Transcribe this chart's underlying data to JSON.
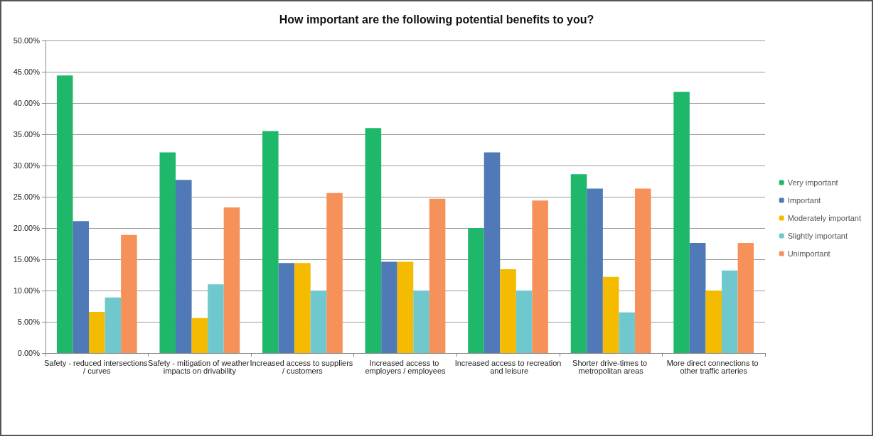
{
  "chart_data": {
    "type": "bar",
    "title": "How important are the following potential benefits to you?",
    "categories": [
      "Safety - reduced intersections / curves",
      "Safety - mitigation of weather impacts on drivability",
      "Increased access to suppliers / customers",
      "Increased access to employers / employees",
      "Increased access to recreation and leisure",
      "Shorter drive-times to metropolitan areas",
      "More direct connections to other traffic arteries"
    ],
    "series": [
      {
        "name": "Very important",
        "color": "#1fb86a",
        "values": [
          44.4,
          32.1,
          35.5,
          36.0,
          20.0,
          28.6,
          41.8
        ]
      },
      {
        "name": "Important",
        "color": "#4f79b7",
        "values": [
          21.1,
          27.7,
          14.4,
          14.6,
          32.1,
          26.3,
          17.6
        ]
      },
      {
        "name": "Moderately important",
        "color": "#f5bb00",
        "values": [
          6.6,
          5.6,
          14.4,
          14.6,
          13.4,
          12.2,
          10.0
        ]
      },
      {
        "name": "Slightly important",
        "color": "#70c8cf",
        "values": [
          8.9,
          11.0,
          10.0,
          10.0,
          10.0,
          6.5,
          13.2
        ]
      },
      {
        "name": "Unimportant",
        "color": "#f7915a",
        "values": [
          18.9,
          23.3,
          25.6,
          24.7,
          24.4,
          26.3,
          17.6
        ]
      }
    ],
    "ylim": [
      0,
      50
    ],
    "yticks": [
      {
        "value": 0,
        "label": "0.00%"
      },
      {
        "value": 5,
        "label": "5.00%"
      },
      {
        "value": 10,
        "label": "10.00%"
      },
      {
        "value": 15,
        "label": "15.00%"
      },
      {
        "value": 20,
        "label": "20.00%"
      },
      {
        "value": 25,
        "label": "25.00%"
      },
      {
        "value": 30,
        "label": "30.00%"
      },
      {
        "value": 35,
        "label": "35.00%"
      },
      {
        "value": 40,
        "label": "40.00%"
      },
      {
        "value": 45,
        "label": "45.00%"
      },
      {
        "value": 50,
        "label": "50.00%"
      }
    ],
    "grid": "y",
    "legend": "right"
  }
}
